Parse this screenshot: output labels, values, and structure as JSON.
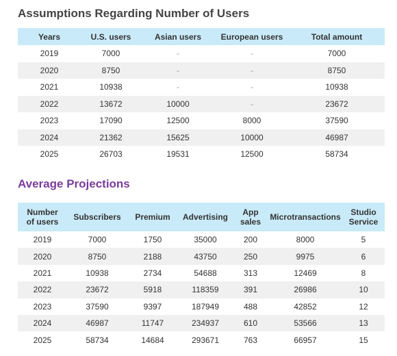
{
  "section1": {
    "title": "Assumptions Regarding Number of Users",
    "headers": [
      "Years",
      "U.S. users",
      "Asian users",
      "European users",
      "Total amount"
    ],
    "rows": [
      [
        "2019",
        "7000",
        "-",
        "-",
        "7000"
      ],
      [
        "2020",
        "8750",
        "-",
        "-",
        "8750"
      ],
      [
        "2021",
        "10938",
        "-",
        "-",
        "10938"
      ],
      [
        "2022",
        "13672",
        "10000",
        "-",
        "23672"
      ],
      [
        "2023",
        "17090",
        "12500",
        "8000",
        "37590"
      ],
      [
        "2024",
        "21362",
        "15625",
        "10000",
        "46987"
      ],
      [
        "2025",
        "26703",
        "19531",
        "12500",
        "58734"
      ]
    ]
  },
  "section2": {
    "title": "Average Projections",
    "headers": [
      [
        "Number",
        "of users"
      ],
      [
        "Subscribers"
      ],
      [
        "Premium"
      ],
      [
        "Advertising"
      ],
      [
        "App",
        "sales"
      ],
      [
        "Microtransactions"
      ],
      [
        "Studio",
        "Service"
      ]
    ],
    "rows": [
      [
        "2019",
        "7000",
        "1750",
        "35000",
        "200",
        "8000",
        "5"
      ],
      [
        "2020",
        "8750",
        "2188",
        "43750",
        "250",
        "9975",
        "6"
      ],
      [
        "2021",
        "10938",
        "2734",
        "54688",
        "313",
        "12469",
        "8"
      ],
      [
        "2022",
        "23672",
        "5918",
        "118359",
        "391",
        "26986",
        "10"
      ],
      [
        "2023",
        "37590",
        "9397",
        "187949",
        "488",
        "42852",
        "12"
      ],
      [
        "2024",
        "46987",
        "11747",
        "234937",
        "610",
        "53566",
        "13"
      ],
      [
        "2025",
        "58734",
        "14684",
        "293671",
        "763",
        "66957",
        "15"
      ]
    ]
  }
}
